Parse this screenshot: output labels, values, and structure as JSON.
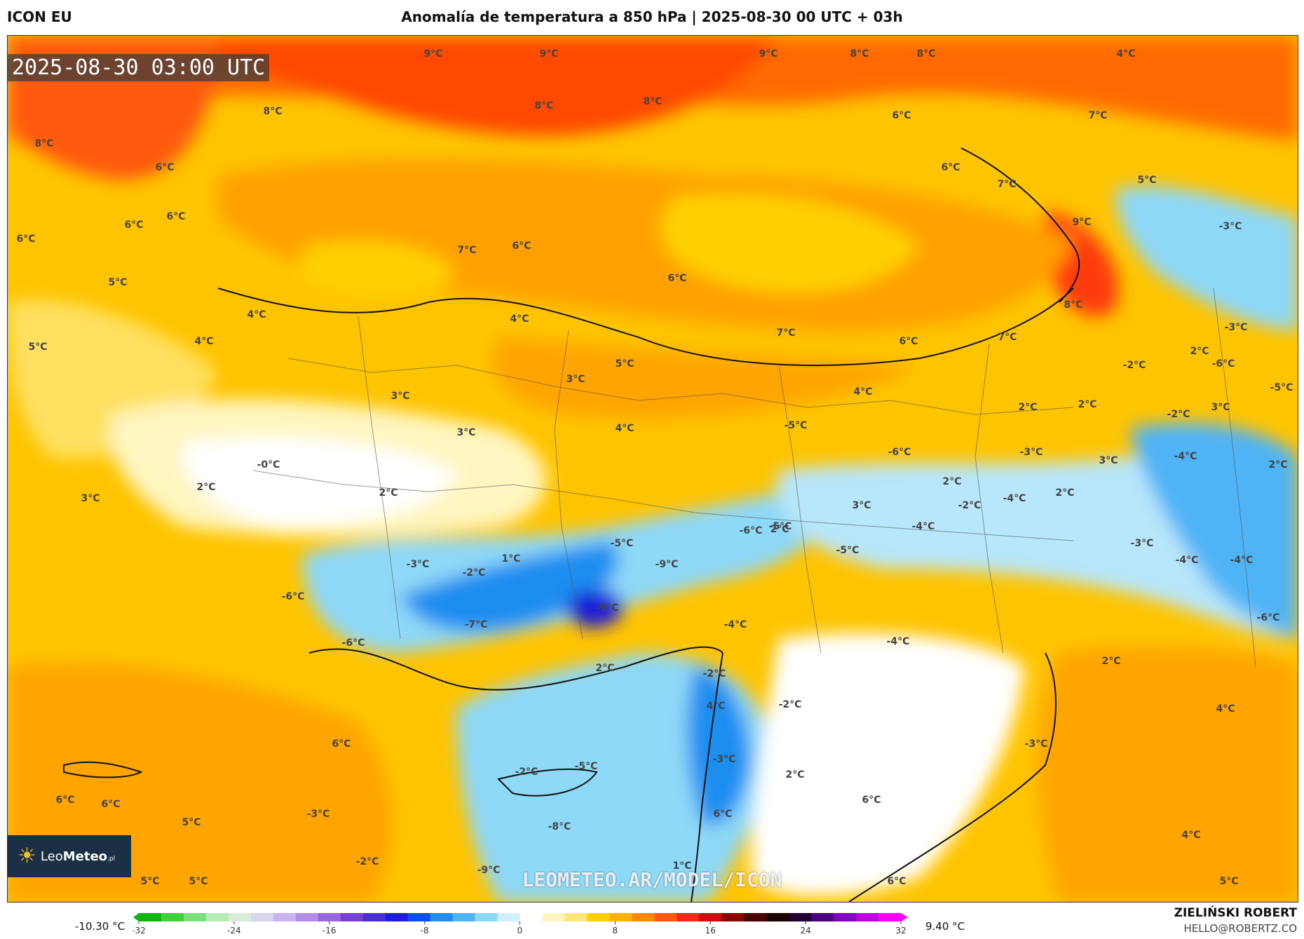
{
  "header": {
    "model": "ICON EU",
    "title": "Anomalía de temperatura a 850 hPa | 2025-08-30 00 UTC + 03h"
  },
  "map": {
    "valid_time": "2025-08-30 03:00 UTC",
    "watermark": "LEOMETEO.AR/MODEL/ICON",
    "logo": {
      "brand_light": "Leo",
      "brand_bold": "Meteo",
      "brand_suffix": ".pl",
      "icon": "sun-icon"
    },
    "contour_labels": [
      "9°C",
      "9°C",
      "9°C",
      "8°C",
      "8°C",
      "4°C",
      "8°C",
      "8°C",
      "8°C",
      "6°C",
      "7°C",
      "8°C",
      "6°C",
      "7°C",
      "5°C",
      "6°C",
      "6°C",
      "6°C",
      "9°C",
      "6°C",
      "7°C",
      "6°C",
      "5°C",
      "-3°C",
      "4°C",
      "4°C",
      "6°C",
      "5°C",
      "3°C",
      "5°C",
      "4°C",
      "8°C",
      "7°C",
      "6°C",
      "7°C",
      "-3°C",
      "-2°C",
      "2°C",
      "-6°C",
      "-5°C",
      "3°C",
      "3°C",
      "4°C",
      "2°C",
      "2°C",
      "-2°C",
      "3°C",
      "-0°C",
      "2°C",
      "2°C",
      "3°C",
      "4°C",
      "-5°C",
      "-6°C",
      "-3°C",
      "3°C",
      "2°C",
      "-4°C",
      "2°C",
      "-2°C",
      "-4°C",
      "-4°C",
      "3°C",
      "2°C",
      "-6°C",
      "-5°C",
      "-5°C",
      "-3°C",
      "1°C",
      "-2°C",
      "-9°C",
      "-5°C",
      "2°C",
      "-4°C",
      "-4°C",
      "-3°C",
      "-9°C",
      "-7°C",
      "-6°C",
      "-4°C",
      "-6°C",
      "-6°C",
      "2°C",
      "-4°C",
      "-2°C",
      "2°C",
      "4°C",
      "-2°C",
      "4°C",
      "6°C",
      "-3°C",
      "-2°C",
      "-5°C",
      "-3°C",
      "2°C",
      "6°C",
      "6°C",
      "6°C",
      "5°C",
      "-3°C",
      "-8°C",
      "6°C",
      "4°C",
      "-2°C",
      "-9°C",
      "1°C",
      "6°C",
      "5°C",
      "5°C",
      "5°C"
    ]
  },
  "colorbar": {
    "min_label": "-10.30 °C",
    "max_label": "9.40 °C",
    "ticks": [
      "-32",
      "-24",
      "-16",
      "-8",
      "0",
      "8",
      "16",
      "24",
      "32"
    ],
    "range": [
      -32,
      32
    ],
    "colors": [
      "#11b511",
      "#3fd03f",
      "#7ce07c",
      "#b5ecb5",
      "#d8ecd8",
      "#d6d6ee",
      "#c9b4ee",
      "#b48ee6",
      "#9a66e0",
      "#7a3fd6",
      "#4d2fd0",
      "#1f1fd6",
      "#0a4fe6",
      "#1f8ef0",
      "#4fb4f5",
      "#8ed8f8",
      "#d0f0fb",
      "#ffffff",
      "#fff5c0",
      "#ffe57a",
      "#ffd000",
      "#ffb000",
      "#ff8a00",
      "#ff5a10",
      "#f02a1a",
      "#c81010",
      "#8a0606",
      "#4a0303",
      "#1a0000",
      "#200030",
      "#4a0080",
      "#8000c0",
      "#c000e0",
      "#ff00ff"
    ]
  },
  "credit": {
    "name": "ZIELIŃSKI ROBERT",
    "email": "HELLO@ROBERTZ.CO"
  }
}
